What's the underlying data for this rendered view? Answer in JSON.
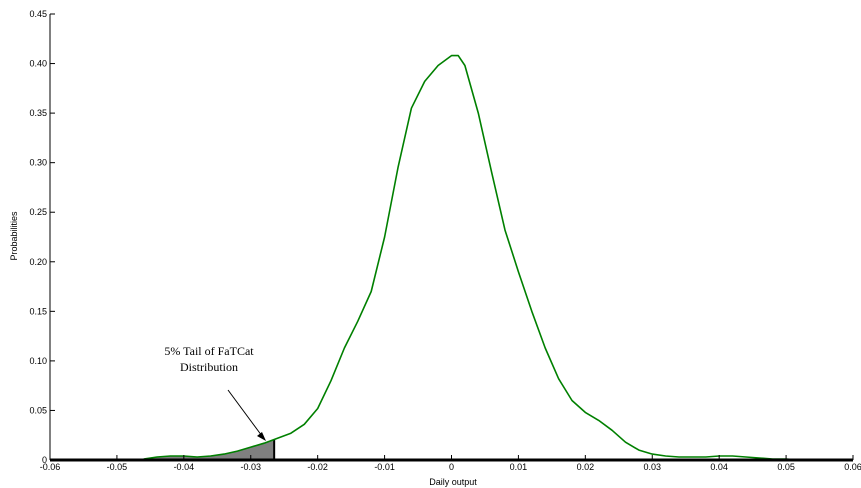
{
  "chart_data": {
    "type": "line",
    "xlabel": "Daily output",
    "ylabel": "Probabilities",
    "xlim": [
      -0.06,
      0.06
    ],
    "ylim": [
      0,
      0.45
    ],
    "x_ticks": [
      "-0.06",
      "-0.05",
      "-0.04",
      "-0.03",
      "-0.02",
      "-0.01",
      "0",
      "0.01",
      "0.02",
      "0.03",
      "0.04",
      "0.05",
      "0.06"
    ],
    "y_ticks": [
      "0",
      "0.05",
      "0.10",
      "0.15",
      "0.20",
      "0.25",
      "0.30",
      "0.35",
      "0.40",
      "0.45"
    ],
    "grid": false,
    "series": [
      {
        "color": "#008000",
        "x": [
          -0.046,
          -0.044,
          -0.042,
          -0.04,
          -0.038,
          -0.036,
          -0.034,
          -0.032,
          -0.03,
          -0.028,
          -0.026,
          -0.024,
          -0.022,
          -0.02,
          -0.018,
          -0.016,
          -0.014,
          -0.012,
          -0.01,
          -0.008,
          -0.006,
          -0.004,
          -0.002,
          0.0,
          0.001,
          0.002,
          0.004,
          0.006,
          0.008,
          0.01,
          0.012,
          0.014,
          0.016,
          0.018,
          0.02,
          0.022,
          0.024,
          0.026,
          0.028,
          0.03,
          0.032,
          0.034,
          0.036,
          0.038,
          0.04,
          0.042,
          0.044,
          0.046,
          0.048,
          0.05,
          0.052
        ],
        "y": [
          0.001,
          0.003,
          0.004,
          0.004,
          0.003,
          0.004,
          0.006,
          0.009,
          0.013,
          0.017,
          0.022,
          0.027,
          0.036,
          0.052,
          0.08,
          0.113,
          0.14,
          0.17,
          0.225,
          0.295,
          0.355,
          0.382,
          0.398,
          0.408,
          0.408,
          0.398,
          0.35,
          0.29,
          0.232,
          0.19,
          0.15,
          0.113,
          0.082,
          0.06,
          0.048,
          0.04,
          0.03,
          0.018,
          0.01,
          0.006,
          0.004,
          0.003,
          0.003,
          0.003,
          0.004,
          0.004,
          0.003,
          0.002,
          0.001,
          0.001,
          0.0
        ]
      }
    ],
    "shaded_tail": {
      "to_x": -0.0265,
      "color": "#808080"
    },
    "annotations": [
      {
        "text_lines": [
          "5% Tail of FaTCat",
          "Distribution"
        ]
      }
    ]
  },
  "colors": {
    "axis": "#000000",
    "line": "#008000",
    "tail": "#808080"
  }
}
